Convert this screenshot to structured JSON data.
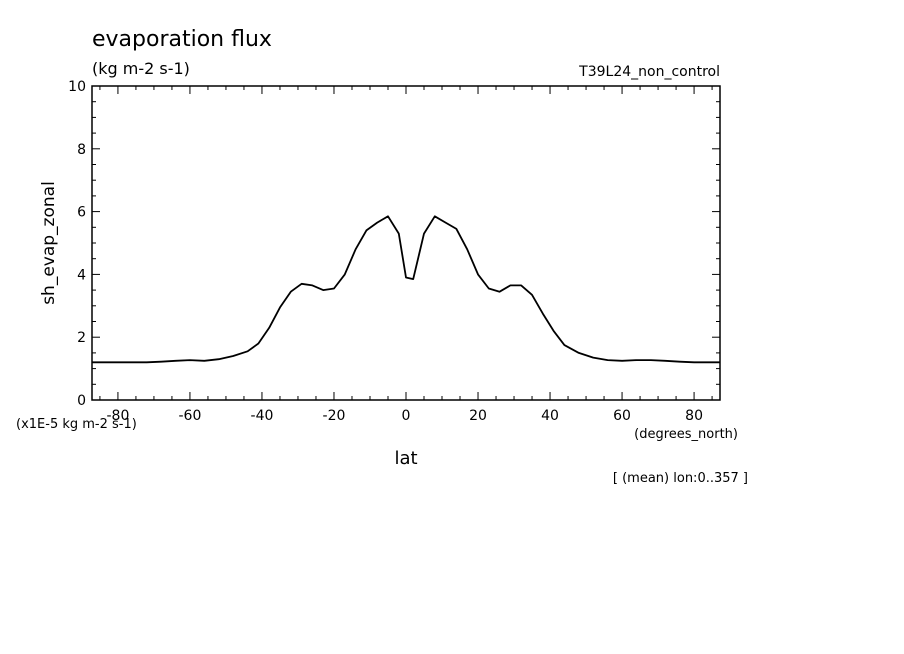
{
  "chart_data": {
    "type": "line",
    "title": "evaporation flux",
    "subtitle": "(kg m-2 s-1)",
    "run_label": "T39L24_non_control",
    "ylabel": "sh_evap_zonal",
    "xlabel": "lat",
    "x_units": "(degrees_north)",
    "y_scale_note": "(x1E-5 kg m-2 s-1)",
    "footnote": "[ (mean) lon:0..357 ]",
    "xlim": [
      -87.2,
      87.2
    ],
    "ylim": [
      0,
      10
    ],
    "x_ticks": [
      -80,
      -60,
      -40,
      -20,
      0,
      20,
      40,
      60,
      80
    ],
    "x_tick_labels": [
      "-80",
      "-60",
      "-40",
      "-20",
      "0",
      "20",
      "40",
      "60",
      "80"
    ],
    "y_ticks": [
      0,
      2,
      4,
      6,
      8,
      10
    ],
    "y_tick_labels": [
      "0",
      "2",
      "4",
      "6",
      "8",
      "10"
    ],
    "grid": false,
    "series": [
      {
        "x": [
          -87.2,
          -84,
          -80,
          -76,
          -72,
          -68,
          -64,
          -60,
          -56,
          -52,
          -48,
          -44,
          -41,
          -38,
          -35,
          -32,
          -29,
          -26,
          -23,
          -20,
          -17,
          -14,
          -11,
          -8,
          -5,
          -2,
          0,
          2,
          5,
          8,
          11,
          14,
          17,
          20,
          23,
          26,
          29,
          32,
          35,
          38,
          41,
          44,
          48,
          52,
          56,
          60,
          64,
          68,
          72,
          76,
          80,
          84,
          87.2
        ],
        "y": [
          1.2,
          1.2,
          1.2,
          1.2,
          1.2,
          1.22,
          1.25,
          1.27,
          1.25,
          1.3,
          1.4,
          1.55,
          1.8,
          2.3,
          2.95,
          3.45,
          3.7,
          3.65,
          3.5,
          3.55,
          4.0,
          4.8,
          5.4,
          5.65,
          5.85,
          5.3,
          3.9,
          3.85,
          5.3,
          5.85,
          5.65,
          5.45,
          4.8,
          4.0,
          3.55,
          3.45,
          3.65,
          3.65,
          3.35,
          2.75,
          2.2,
          1.75,
          1.5,
          1.35,
          1.27,
          1.25,
          1.27,
          1.27,
          1.25,
          1.22,
          1.2,
          1.2,
          1.2
        ]
      }
    ]
  }
}
